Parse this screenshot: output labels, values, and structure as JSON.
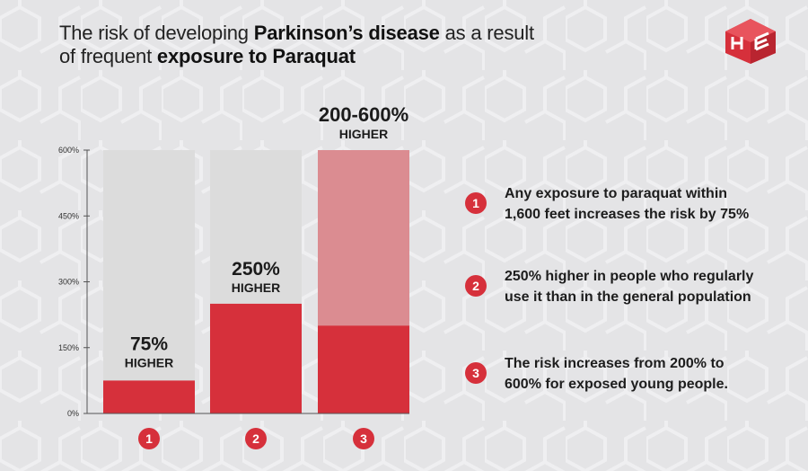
{
  "title": {
    "part1": "The risk of developing ",
    "bold1": "Parkinson’s disease",
    "part2": " as a result",
    "part3": "of frequent ",
    "bold2": "exposure to Paraquat"
  },
  "colors": {
    "background": "#e4e4e6",
    "bar_empty": "#dcdcdc",
    "bar_fill": "#d6303b",
    "bar_range": "#db8c91",
    "badge": "#d6303b"
  },
  "chart_data": {
    "type": "bar",
    "categories": [
      "1",
      "2",
      "3"
    ],
    "yticks": [
      "0%",
      "150%",
      "300%",
      "450%",
      "600%"
    ],
    "ylim": [
      0,
      600
    ],
    "grid": false,
    "series": [
      {
        "values": [
          75,
          250,
          200
        ]
      }
    ],
    "range_upper": [
      null,
      null,
      600
    ],
    "labels": [
      {
        "value": "75%",
        "sub": "HIGHER"
      },
      {
        "value": "250%",
        "sub": "HIGHER"
      },
      {
        "value": "200-600%",
        "sub": "HIGHER"
      }
    ]
  },
  "legend": [
    {
      "num": "1",
      "line1": "Any exposure to paraquat within",
      "line2": "1,600 feet increases the risk by 75%"
    },
    {
      "num": "2",
      "line1": "250% higher in people who regularly",
      "line2": "use it than in the general population"
    },
    {
      "num": "3",
      "line1": "The risk increases from 200% to",
      "line2": "600% for exposed young people."
    }
  ]
}
